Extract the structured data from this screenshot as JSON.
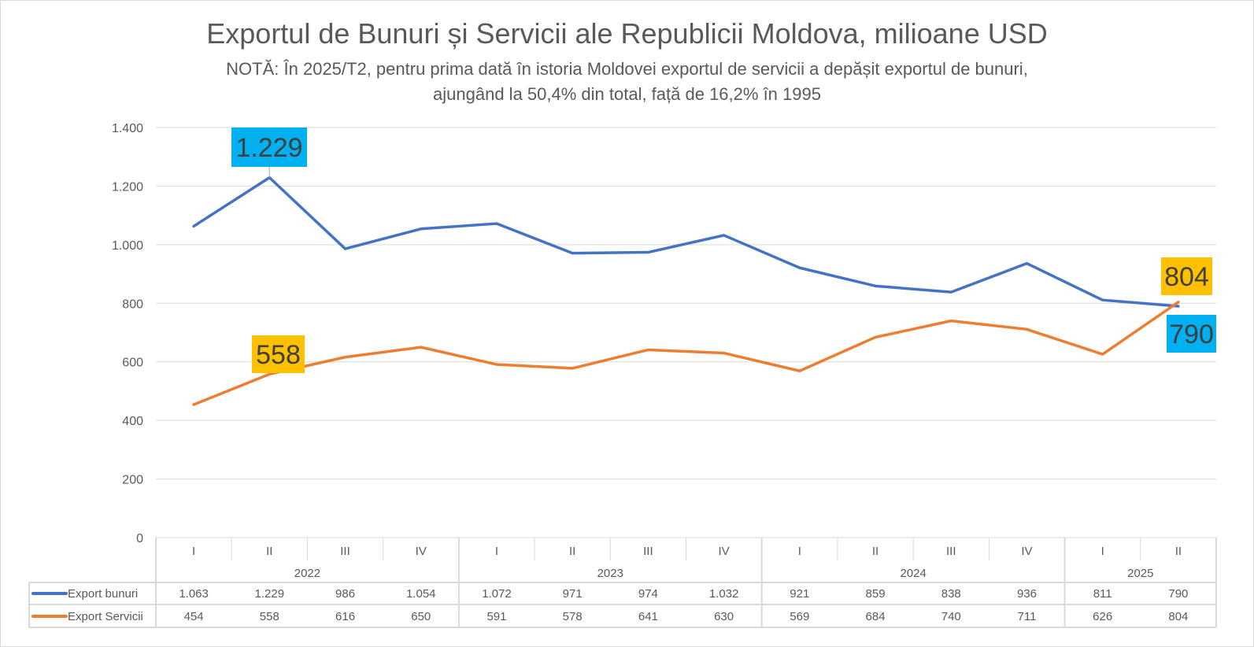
{
  "chart_data": {
    "type": "line",
    "title": "Exportul de Bunuri și Servicii ale Republicii Moldova, milioane USD",
    "subtitle_lines": [
      "NOTĂ: În 2025/T2, pentru prima dată în istoria Moldovei exportul de servicii a depășit exportul de bunuri,",
      "ajungând la 50,4% din total, față de 16,2% în 1995"
    ],
    "quarters": [
      "I",
      "II",
      "III",
      "IV",
      "I",
      "II",
      "III",
      "IV",
      "I",
      "II",
      "III",
      "IV",
      "I",
      "II"
    ],
    "years": [
      {
        "label": "2022",
        "span": 4
      },
      {
        "label": "2023",
        "span": 4
      },
      {
        "label": "2024",
        "span": 4
      },
      {
        "label": "2025",
        "span": 2
      }
    ],
    "ylim": [
      0,
      1400
    ],
    "yticks": [
      0,
      200,
      400,
      600,
      800,
      1000,
      1200,
      1400
    ],
    "ytick_labels": [
      "0",
      "200",
      "400",
      "600",
      "800",
      "1.000",
      "1.200",
      "1.400"
    ],
    "grid": true,
    "legend": "data-table",
    "series": [
      {
        "name": "Export bunuri",
        "color": "#4472C4",
        "values": [
          1063,
          1229,
          986,
          1054,
          1072,
          971,
          974,
          1032,
          921,
          859,
          838,
          936,
          811,
          790
        ],
        "labels": [
          "1.063",
          "1.229",
          "986",
          "1.054",
          "1.072",
          "971",
          "974",
          "1.032",
          "921",
          "859",
          "838",
          "936",
          "811",
          "790"
        ]
      },
      {
        "name": "Export Servicii",
        "color": "#ED7D31",
        "values": [
          454,
          558,
          616,
          650,
          591,
          578,
          641,
          630,
          569,
          684,
          740,
          711,
          626,
          804
        ],
        "labels": [
          "454",
          "558",
          "616",
          "650",
          "591",
          "578",
          "641",
          "630",
          "569",
          "684",
          "740",
          "711",
          "626",
          "804"
        ]
      }
    ],
    "annotations": [
      {
        "series": 0,
        "index": 1,
        "text": "1.229",
        "bg": "#00B0F0"
      },
      {
        "series": 1,
        "index": 1,
        "text": "558",
        "bg": "#FFC000"
      },
      {
        "series": 1,
        "index": 13,
        "text": "804",
        "bg": "#FFC000"
      },
      {
        "series": 0,
        "index": 13,
        "text": "790",
        "bg": "#00B0F0"
      }
    ]
  }
}
